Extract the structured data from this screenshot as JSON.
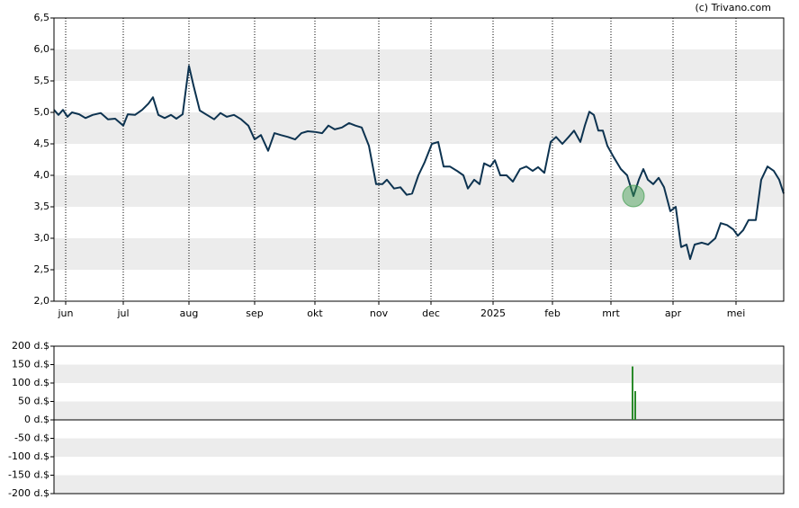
{
  "credit": "(c) Trivano.com",
  "chart_data": [
    {
      "type": "line",
      "x": [
        60,
        65,
        70,
        75,
        80,
        88,
        95,
        103,
        112,
        120,
        128,
        137,
        142,
        150,
        158,
        165,
        170,
        176,
        183,
        190,
        196,
        203,
        210,
        215,
        222,
        230,
        238,
        245,
        252,
        260,
        268,
        276,
        283,
        290,
        298,
        305,
        312,
        320,
        328,
        335,
        342,
        350,
        358,
        365,
        372,
        380,
        388,
        395,
        402,
        410,
        418,
        425,
        430,
        438,
        445,
        452,
        458,
        465,
        472,
        480,
        487,
        493,
        500,
        508,
        515,
        520,
        527,
        533,
        538,
        545,
        550,
        556,
        563,
        570,
        578,
        585,
        592,
        598,
        605,
        612,
        618,
        625,
        632,
        638,
        645,
        650,
        655,
        660,
        665,
        670,
        675,
        682,
        690,
        697,
        704,
        710,
        715,
        720,
        726,
        732,
        738,
        745,
        751,
        757,
        763,
        767,
        772,
        780,
        787,
        795,
        801,
        808,
        815,
        820,
        826,
        832,
        840,
        846,
        853,
        860,
        866,
        871
      ],
      "series": [
        {
          "color": "#0d3350",
          "values": [
            5.04,
            4.96,
            5.04,
            4.93,
            5.0,
            4.97,
            4.91,
            4.96,
            4.99,
            4.89,
            4.9,
            4.79,
            4.97,
            4.96,
            5.04,
            5.14,
            5.24,
            4.96,
            4.91,
            4.96,
            4.9,
            4.97,
            5.74,
            5.43,
            5.03,
            4.96,
            4.89,
            4.99,
            4.93,
            4.96,
            4.89,
            4.79,
            4.57,
            4.64,
            4.39,
            4.67,
            4.64,
            4.61,
            4.57,
            4.67,
            4.7,
            4.69,
            4.67,
            4.79,
            4.73,
            4.76,
            4.83,
            4.79,
            4.76,
            4.47,
            3.86,
            3.86,
            3.93,
            3.79,
            3.81,
            3.69,
            3.71,
            4.0,
            4.21,
            4.5,
            4.53,
            4.14,
            4.14,
            4.07,
            4.0,
            3.79,
            3.93,
            3.86,
            4.19,
            4.14,
            4.24,
            4.0,
            4.0,
            3.9,
            4.1,
            4.14,
            4.07,
            4.13,
            4.04,
            4.53,
            4.61,
            4.5,
            4.61,
            4.71,
            4.53,
            4.79,
            5.01,
            4.96,
            4.71,
            4.71,
            4.47,
            4.29,
            4.1,
            4.0,
            3.67,
            3.93,
            4.1,
            3.93,
            3.86,
            3.96,
            3.81,
            3.43,
            3.5,
            2.86,
            2.9,
            2.67,
            2.9,
            2.93,
            2.9,
            3.0,
            3.24,
            3.21,
            3.14,
            3.04,
            3.13,
            3.29,
            3.29,
            3.93,
            4.14,
            4.07,
            3.93,
            3.71
          ]
        }
      ],
      "xlim": [
        60,
        871
      ],
      "xticks": [
        {
          "value": 73,
          "label": "jun"
        },
        {
          "value": 137,
          "label": "jul"
        },
        {
          "value": 210,
          "label": "aug"
        },
        {
          "value": 283,
          "label": "sep"
        },
        {
          "value": 350,
          "label": "okt"
        },
        {
          "value": 421,
          "label": "nov"
        },
        {
          "value": 479,
          "label": "dec"
        },
        {
          "value": 548,
          "label": "2025"
        },
        {
          "value": 614,
          "label": "feb"
        },
        {
          "value": 679,
          "label": "mrt"
        },
        {
          "value": 748,
          "label": "apr"
        },
        {
          "value": 818,
          "label": "mei"
        }
      ],
      "ylim": [
        2.0,
        6.5
      ],
      "yticks": [
        {
          "value": 2.0,
          "label": "2,0"
        },
        {
          "value": 2.5,
          "label": "2,5"
        },
        {
          "value": 3.0,
          "label": "3,0"
        },
        {
          "value": 3.5,
          "label": "3,5"
        },
        {
          "value": 4.0,
          "label": "4,0"
        },
        {
          "value": 4.5,
          "label": "4,5"
        },
        {
          "value": 5.0,
          "label": "5,0"
        },
        {
          "value": 5.5,
          "label": "5,5"
        },
        {
          "value": 6.0,
          "label": "6,0"
        },
        {
          "value": 6.5,
          "label": "6,5"
        }
      ]
    },
    {
      "type": "bar",
      "x": [
        703,
        706
      ],
      "series": [
        {
          "color": "#2a8a2a",
          "values": [
            145,
            78
          ]
        }
      ],
      "xlim": [
        60,
        871
      ],
      "ylim": [
        -200,
        200
      ],
      "yticks": [
        {
          "value": -200,
          "label": "-200 d.$"
        },
        {
          "value": -150,
          "label": "-150 d.$"
        },
        {
          "value": -100,
          "label": "-100 d.$"
        },
        {
          "value": -50,
          "label": "-50 d.$"
        },
        {
          "value": 0,
          "label": "0 d.$"
        },
        {
          "value": 50,
          "label": "50 d.$"
        },
        {
          "value": 100,
          "label": "100 d.$"
        },
        {
          "value": 150,
          "label": "150 d.$"
        },
        {
          "value": 200,
          "label": "200 d.$"
        }
      ]
    }
  ]
}
